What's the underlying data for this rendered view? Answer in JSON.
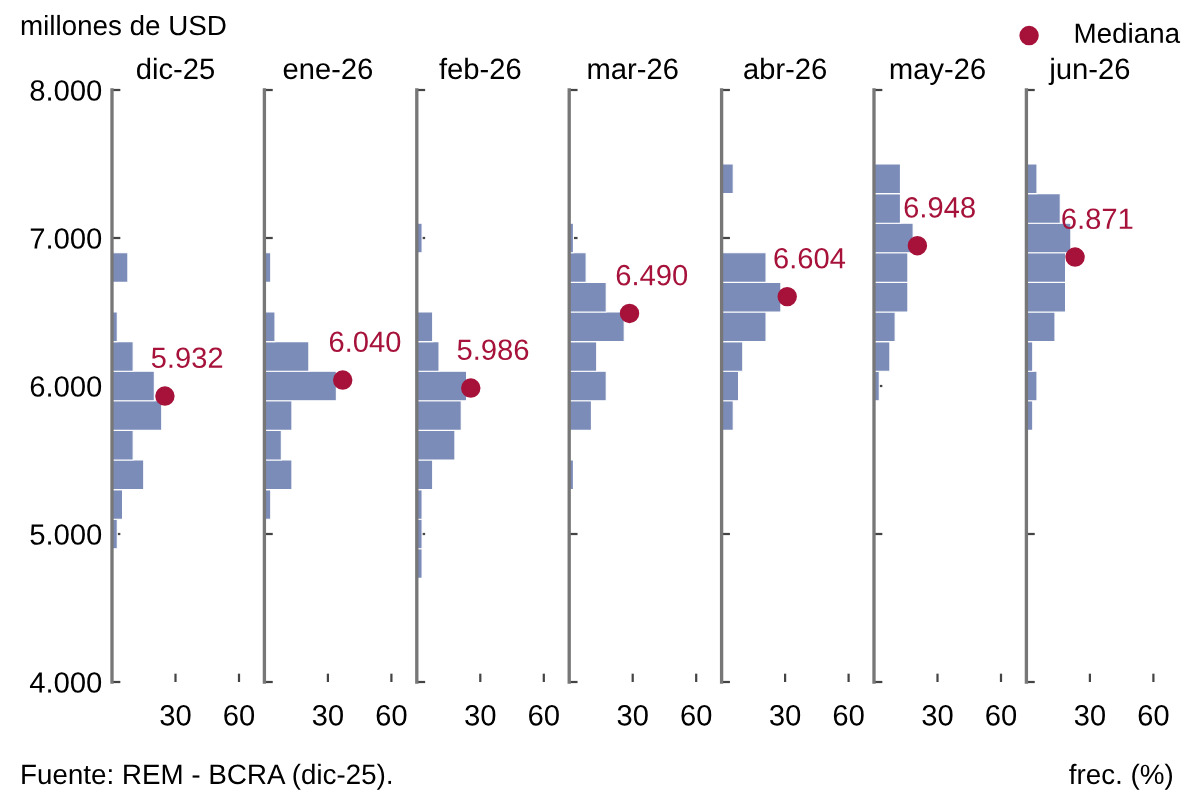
{
  "chart_data": [
    {
      "type": "histogram",
      "orientation": "horizontal",
      "title": "dic-25",
      "ylabel": "millones de USD",
      "annotations": [
        "Fuente: REM - BCRA (dic-25).",
        {
          "text": "5.932",
          "x": 25,
          "y": 5932
        }
      ],
      "xlim": [
        0,
        60
      ],
      "ylim": [
        4000,
        8000
      ],
      "xticks": [
        30,
        60
      ],
      "yticks": [
        {
          "value": 4000,
          "label": "4.000"
        },
        {
          "value": 5000,
          "label": "5.000"
        },
        {
          "value": 6000,
          "label": "6.000"
        },
        {
          "value": 7000,
          "label": "7.000"
        },
        {
          "value": 8000,
          "label": "8.000"
        }
      ],
      "series": [
        {
          "color": "#7b8cb8",
          "bins": [
            4700,
            4900,
            5100,
            5300,
            5500,
            5700,
            5900,
            6100,
            6300,
            6500,
            6700,
            6900,
            7100,
            7300,
            7500
          ],
          "values": [
            0,
            2.5,
            5,
            15,
            10,
            23.5,
            20,
            10,
            2.5,
            0,
            7.5,
            0,
            0,
            0
          ]
        },
        {
          "type": "scatter",
          "marker": "circle",
          "color": "#a6123a",
          "x": [
            5932
          ],
          "values": [
            25
          ]
        }
      ]
    },
    {
      "type": "histogram",
      "orientation": "horizontal",
      "title": "ene-26",
      "tick_labels": "x",
      "annotations": [
        {
          "text": "6.040",
          "x": 37,
          "y": 6040
        }
      ],
      "xlim": [
        0,
        60
      ],
      "ylim": [
        4000,
        8000
      ],
      "xticks": [
        30,
        60
      ],
      "yticks": [
        {
          "value": 4000,
          "label": null
        },
        {
          "value": 5000,
          "label": null
        },
        {
          "value": 6000,
          "label": null
        },
        {
          "value": 7000,
          "label": null
        },
        {
          "value": 8000,
          "label": null
        }
      ],
      "series": [
        {
          "color": "#7b8cb8",
          "bins": [
            4700,
            4900,
            5100,
            5300,
            5500,
            5700,
            5900,
            6100,
            6300,
            6500,
            6700,
            6900,
            7100,
            7300,
            7500
          ],
          "values": [
            0,
            0,
            3,
            13,
            8,
            13,
            34,
            21,
            5,
            0,
            3,
            0,
            0,
            0
          ]
        },
        {
          "type": "scatter",
          "marker": "circle",
          "color": "#a6123a",
          "x": [
            6040
          ],
          "values": [
            37
          ]
        }
      ]
    },
    {
      "type": "histogram",
      "orientation": "horizontal",
      "title": "feb-26",
      "tick_labels": "x",
      "annotations": [
        {
          "text": "5.986",
          "x": 25.5,
          "y": 5986
        }
      ],
      "xlim": [
        0,
        60
      ],
      "ylim": [
        4000,
        8000
      ],
      "xticks": [
        30,
        60
      ],
      "yticks": [
        {
          "value": 4000,
          "label": null
        },
        {
          "value": 5000,
          "label": null
        },
        {
          "value": 6000,
          "label": null
        },
        {
          "value": 7000,
          "label": null
        },
        {
          "value": 8000,
          "label": null
        }
      ],
      "series": [
        {
          "color": "#7b8cb8",
          "bins": [
            4700,
            4900,
            5100,
            5300,
            5500,
            5700,
            5900,
            6100,
            6300,
            6500,
            6700,
            6900,
            7100,
            7300,
            7500
          ],
          "values": [
            2.5,
            2.5,
            2.5,
            7.5,
            18,
            21,
            23.5,
            10.5,
            7.5,
            0,
            0,
            2.5,
            0,
            0
          ]
        },
        {
          "type": "scatter",
          "marker": "circle",
          "color": "#a6123a",
          "x": [
            5986
          ],
          "values": [
            25.5
          ]
        }
      ]
    },
    {
      "type": "histogram",
      "orientation": "horizontal",
      "title": "mar-26",
      "tick_labels": "x",
      "annotations": [
        {
          "text": "6.490",
          "x": 28.5,
          "y": 6490
        }
      ],
      "xlim": [
        0,
        60
      ],
      "ylim": [
        4000,
        8000
      ],
      "xticks": [
        30,
        60
      ],
      "yticks": [
        {
          "value": 4000,
          "label": null
        },
        {
          "value": 5000,
          "label": null
        },
        {
          "value": 6000,
          "label": null
        },
        {
          "value": 7000,
          "label": null
        },
        {
          "value": 8000,
          "label": null
        }
      ],
      "series": [
        {
          "color": "#7b8cb8",
          "bins": [
            4700,
            4900,
            5100,
            5300,
            5500,
            5700,
            5900,
            6100,
            6300,
            6500,
            6700,
            6900,
            7100,
            7300,
            7500
          ],
          "values": [
            0,
            0,
            0,
            2,
            0,
            10.5,
            17.5,
            13,
            26,
            17.5,
            8,
            2,
            0,
            0
          ]
        },
        {
          "type": "scatter",
          "marker": "circle",
          "color": "#a6123a",
          "x": [
            6490
          ],
          "values": [
            28.5
          ]
        }
      ]
    },
    {
      "type": "histogram",
      "orientation": "horizontal",
      "title": "abr-26",
      "tick_labels": "x",
      "annotations": [
        {
          "text": "6.604",
          "x": 31,
          "y": 6604
        }
      ],
      "xlim": [
        0,
        60
      ],
      "ylim": [
        4000,
        8000
      ],
      "xticks": [
        30,
        60
      ],
      "yticks": [
        {
          "value": 4000,
          "label": null
        },
        {
          "value": 5000,
          "label": null
        },
        {
          "value": 6000,
          "label": null
        },
        {
          "value": 7000,
          "label": null
        },
        {
          "value": 8000,
          "label": null
        }
      ],
      "series": [
        {
          "color": "#7b8cb8",
          "bins": [
            4700,
            4900,
            5100,
            5300,
            5500,
            5700,
            5900,
            6100,
            6300,
            6500,
            6700,
            6900,
            7100,
            7300,
            7500
          ],
          "values": [
            0,
            0,
            0,
            0,
            0,
            5.5,
            8,
            10,
            21,
            28,
            21,
            0,
            0,
            5.5
          ]
        },
        {
          "type": "scatter",
          "marker": "circle",
          "color": "#a6123a",
          "x": [
            6604
          ],
          "values": [
            31
          ]
        }
      ]
    },
    {
      "type": "histogram",
      "orientation": "horizontal",
      "title": "may-26",
      "tick_labels": "x",
      "annotations": [
        {
          "text": "6.948",
          "x": 20.5,
          "y": 6948
        }
      ],
      "xlim": [
        0,
        60
      ],
      "ylim": [
        4000,
        8000
      ],
      "xticks": [
        30,
        60
      ],
      "yticks": [
        {
          "value": 4000,
          "label": null
        },
        {
          "value": 5000,
          "label": null
        },
        {
          "value": 6000,
          "label": null
        },
        {
          "value": 7000,
          "label": null
        },
        {
          "value": 8000,
          "label": null
        }
      ],
      "series": [
        {
          "color": "#7b8cb8",
          "bins": [
            4700,
            4900,
            5100,
            5300,
            5500,
            5700,
            5900,
            6100,
            6300,
            6500,
            6700,
            6900,
            7100,
            7300,
            7500
          ],
          "values": [
            0,
            0,
            0,
            0,
            0,
            0,
            2.5,
            7.5,
            10,
            16,
            16,
            18.5,
            12.5,
            12.5
          ]
        },
        {
          "type": "scatter",
          "marker": "circle",
          "color": "#a6123a",
          "x": [
            6948
          ],
          "values": [
            20.5
          ]
        }
      ]
    },
    {
      "type": "histogram",
      "orientation": "horizontal",
      "title": "jun-26",
      "xlabel": "frec. (%)",
      "legend": "top right",
      "tick_labels": "x",
      "annotations": [
        {
          "text": "6.871",
          "x": 23,
          "y": 6871
        }
      ],
      "xlim": [
        0,
        60
      ],
      "ylim": [
        4000,
        8000
      ],
      "xticks": [
        30,
        60
      ],
      "yticks": [
        {
          "value": 4000,
          "label": null
        },
        {
          "value": 5000,
          "label": null
        },
        {
          "value": 6000,
          "label": null
        },
        {
          "value": 7000,
          "label": null
        },
        {
          "value": 8000,
          "label": null
        }
      ],
      "series": [
        {
          "color": "#7b8cb8",
          "bins": [
            4700,
            4900,
            5100,
            5300,
            5500,
            5700,
            5900,
            6100,
            6300,
            6500,
            6700,
            6900,
            7100,
            7300,
            7500
          ],
          "values": [
            0,
            0,
            0,
            0,
            0,
            3,
            5,
            3,
            13.5,
            18.5,
            18.5,
            21,
            16,
            5
          ]
        },
        {
          "type": "scatter",
          "marker": "circle",
          "name": "Mediana",
          "color": "#a6123a",
          "x": [
            6871
          ],
          "values": [
            23
          ]
        }
      ]
    }
  ]
}
